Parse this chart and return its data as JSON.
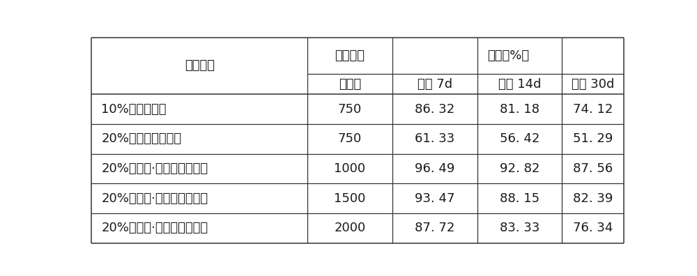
{
  "col_headers_row1": [
    "处理药剂",
    "稀释倍数",
    "防效（%）"
  ],
  "col_headers_row2": [
    "",
    "（倍）",
    "药后 7d",
    "药后 14d",
    "药后 30d"
  ],
  "rows": [
    [
      "10%吡丙醚乳油",
      "750",
      "86. 32",
      "81. 18",
      "74. 12"
    ],
    [
      "20%丁氟螨酯悬浮剂",
      "750",
      "61. 33",
      "56. 42",
      "51. 29"
    ],
    [
      "20%吡丙醚·丁氟螨酯悬浮剂",
      "1000",
      "96. 49",
      "92. 82",
      "87. 56"
    ],
    [
      "20%吡丙醚·丁氟螨酯悬浮剂",
      "1500",
      "93. 47",
      "88. 15",
      "82. 39"
    ],
    [
      "20%吡丙醚·丁氟螨酯悬浮剂",
      "2000",
      "87. 72",
      "83. 33",
      "76. 34"
    ]
  ],
  "bg_color": "#ffffff",
  "line_color": "#333333",
  "text_color": "#1a1a1a",
  "font_size": 13,
  "header_font_size": 13
}
